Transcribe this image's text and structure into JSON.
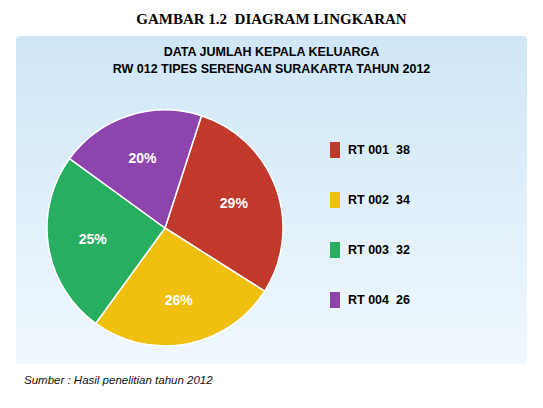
{
  "chart_data": {
    "type": "pie",
    "title": "GAMBAR 1.2  DIAGRAM LINGKARAN",
    "subtitle": [
      "DATA JUMLAH KEPALA KELUARGA",
      "RW 012 TIPES SERENGAN SURAKARTA TAHUN 2012"
    ],
    "categories": [
      "RT 001  38",
      "RT 002  34",
      "RT 003  32",
      "RT 004  26"
    ],
    "values": [
      29,
      26,
      25,
      20
    ],
    "value_labels": [
      "29%",
      "26%",
      "25%",
      "20%"
    ],
    "colors": [
      "#c0392b",
      "#f0c010",
      "#27ae60",
      "#8e44ad"
    ],
    "data_labels": true,
    "legend": "right",
    "annotations": [
      "Sumber : Hasil penelitian tahun 2012"
    ]
  }
}
